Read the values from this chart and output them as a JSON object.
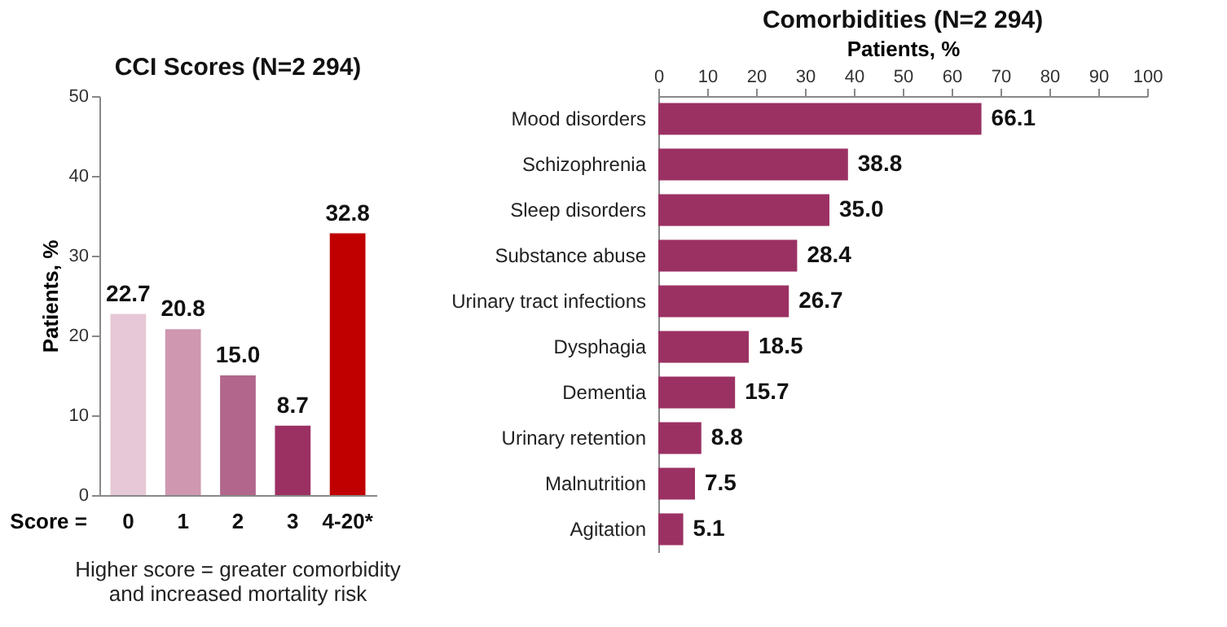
{
  "chart_data": [
    {
      "type": "bar",
      "title": "CCI Scores (N=2 294)",
      "xlabel": "Score =",
      "ylabel": "Patients, %",
      "categories": [
        "0",
        "1",
        "2",
        "3",
        "4-20*"
      ],
      "values": [
        22.7,
        20.8,
        15.0,
        8.7,
        32.8
      ],
      "colors": [
        "#e6c8d6",
        "#cf97b0",
        "#b2668b",
        "#9b3063",
        "#c00000"
      ],
      "ylim": [
        0,
        50
      ],
      "yticks": [
        0,
        10,
        20,
        30,
        40,
        50
      ],
      "grid": false,
      "value_labels": [
        "22.7",
        "20.8",
        "15.0",
        "8.7",
        "32.8"
      ],
      "annotations": [
        "Higher score = greater comorbidity\nand increased mortality risk"
      ]
    },
    {
      "type": "bar",
      "orientation": "horizontal",
      "title": "Comorbidities (N=2 294)",
      "xlabel": "Patients, %",
      "categories": [
        "Mood disorders",
        "Schizophrenia",
        "Sleep disorders",
        "Substance abuse",
        "Urinary tract infections",
        "Dysphagia",
        "Dementia",
        "Urinary retention",
        "Malnutrition",
        "Agitation"
      ],
      "values": [
        66.1,
        38.8,
        35.0,
        28.4,
        26.7,
        18.5,
        15.7,
        8.8,
        7.5,
        5.1
      ],
      "color": "#9b3163",
      "xlim": [
        0,
        100
      ],
      "xticks": [
        0,
        10,
        20,
        30,
        40,
        50,
        60,
        70,
        80,
        90,
        100
      ],
      "grid": false,
      "value_labels": [
        "66.1",
        "38.8",
        "35.0",
        "28.4",
        "26.7",
        "18.5",
        "15.7",
        "8.8",
        "7.5",
        "5.1"
      ]
    }
  ]
}
